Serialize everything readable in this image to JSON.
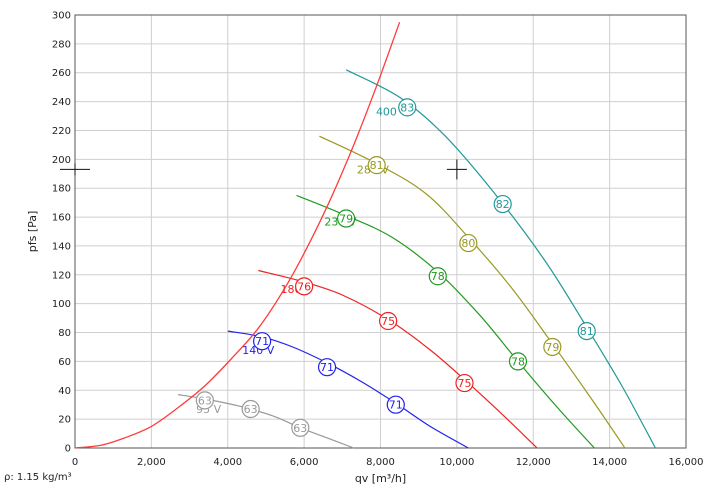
{
  "chart_data": {
    "type": "line",
    "xlabel": "qv [m³/h]",
    "ylabel": "pfs [Pa]",
    "xlim": [
      0,
      16000
    ],
    "ylim": [
      0,
      300
    ],
    "x_ticks": [
      0,
      2000,
      4000,
      6000,
      8000,
      10000,
      12000,
      14000,
      16000
    ],
    "x_tick_labels": [
      "0",
      "2,000",
      "4,000",
      "6,000",
      "8,000",
      "10,000",
      "12,000",
      "14,000",
      "16,000"
    ],
    "y_ticks": [
      0,
      20,
      40,
      60,
      80,
      100,
      120,
      140,
      160,
      180,
      200,
      220,
      240,
      260,
      280,
      300
    ],
    "y_tick_labels": [
      "0",
      "20",
      "40",
      "60",
      "80",
      "100",
      "120",
      "140",
      "160",
      "180",
      "200",
      "220",
      "240",
      "260",
      "280",
      "300"
    ],
    "grid": true,
    "footnote": "ρ: 1.15 kg/m³",
    "system_curve": {
      "color": "#ff3b3b",
      "x": [
        0,
        700,
        1300,
        2000,
        2700,
        3400,
        4100,
        4800,
        5500,
        6100,
        6700,
        7300,
        7900,
        8500
      ],
      "y": [
        0,
        2,
        7,
        15,
        28,
        43,
        62,
        83,
        111,
        140,
        173,
        210,
        251,
        295
      ]
    },
    "operating_point": {
      "x": 10000,
      "y": 193
    },
    "y_axis_marker": 193,
    "series": [
      {
        "name": "95 V",
        "color": "#999999",
        "x": [
          2700,
          3400,
          4300,
          5200,
          5900,
          6700,
          7300
        ],
        "y": [
          37,
          34,
          29,
          22,
          14,
          6,
          0
        ],
        "label_at": [
          3500,
          27
        ],
        "markers": [
          {
            "x": 3400,
            "y": 33,
            "label": "63"
          },
          {
            "x": 4600,
            "y": 27,
            "label": "63"
          },
          {
            "x": 5900,
            "y": 14,
            "label": "63"
          }
        ]
      },
      {
        "name": "140 V",
        "color": "#2222ee",
        "x": [
          4000,
          4900,
          5700,
          6600,
          7500,
          8400,
          9300,
          10300
        ],
        "y": [
          81,
          77,
          70,
          59,
          46,
          31,
          15,
          0
        ],
        "label_at": [
          4800,
          68
        ],
        "markers": [
          {
            "x": 4900,
            "y": 74,
            "label": "71"
          },
          {
            "x": 6600,
            "y": 56,
            "label": "71"
          },
          {
            "x": 8400,
            "y": 30,
            "label": "71"
          }
        ]
      },
      {
        "name": "180 V",
        "color": "#ee2222",
        "x": [
          4800,
          6000,
          7000,
          8200,
          9300,
          10300,
          11200,
          12100
        ],
        "y": [
          123,
          115,
          106,
          89,
          68,
          45,
          23,
          0
        ],
        "label_at": [
          5800,
          110
        ],
        "markers": [
          {
            "x": 6000,
            "y": 112,
            "label": "76"
          },
          {
            "x": 8200,
            "y": 88,
            "label": "75"
          },
          {
            "x": 10200,
            "y": 45,
            "label": "75"
          }
        ]
      },
      {
        "name": "230 V",
        "color": "#229922",
        "x": [
          5800,
          7100,
          8300,
          9500,
          10600,
          11600,
          12600,
          13600
        ],
        "y": [
          175,
          161,
          146,
          122,
          92,
          60,
          29,
          0
        ],
        "label_at": [
          6950,
          157
        ],
        "markers": [
          {
            "x": 7100,
            "y": 159,
            "label": "79"
          },
          {
            "x": 9500,
            "y": 119,
            "label": "78"
          },
          {
            "x": 11600,
            "y": 60,
            "label": "78"
          }
        ]
      },
      {
        "name": "280 V",
        "color": "#999922",
        "x": [
          6400,
          7900,
          9200,
          10300,
          11400,
          12400,
          13500,
          14400
        ],
        "y": [
          216,
          197,
          176,
          146,
          112,
          76,
          35,
          0
        ],
        "label_at": [
          7800,
          193
        ],
        "markers": [
          {
            "x": 7900,
            "y": 196,
            "label": "81"
          },
          {
            "x": 10300,
            "y": 142,
            "label": "80"
          },
          {
            "x": 12500,
            "y": 70,
            "label": "79"
          }
        ]
      },
      {
        "name": "400 V",
        "color": "#229999",
        "x": [
          7100,
          8500,
          9700,
          11000,
          12300,
          13300,
          14300,
          15200
        ],
        "y": [
          262,
          243,
          216,
          176,
          130,
          88,
          44,
          0
        ],
        "label_at": [
          8300,
          233
        ],
        "markers": [
          {
            "x": 8700,
            "y": 236,
            "label": "83"
          },
          {
            "x": 11200,
            "y": 169,
            "label": "82"
          },
          {
            "x": 13400,
            "y": 81,
            "label": "81"
          }
        ]
      }
    ]
  }
}
